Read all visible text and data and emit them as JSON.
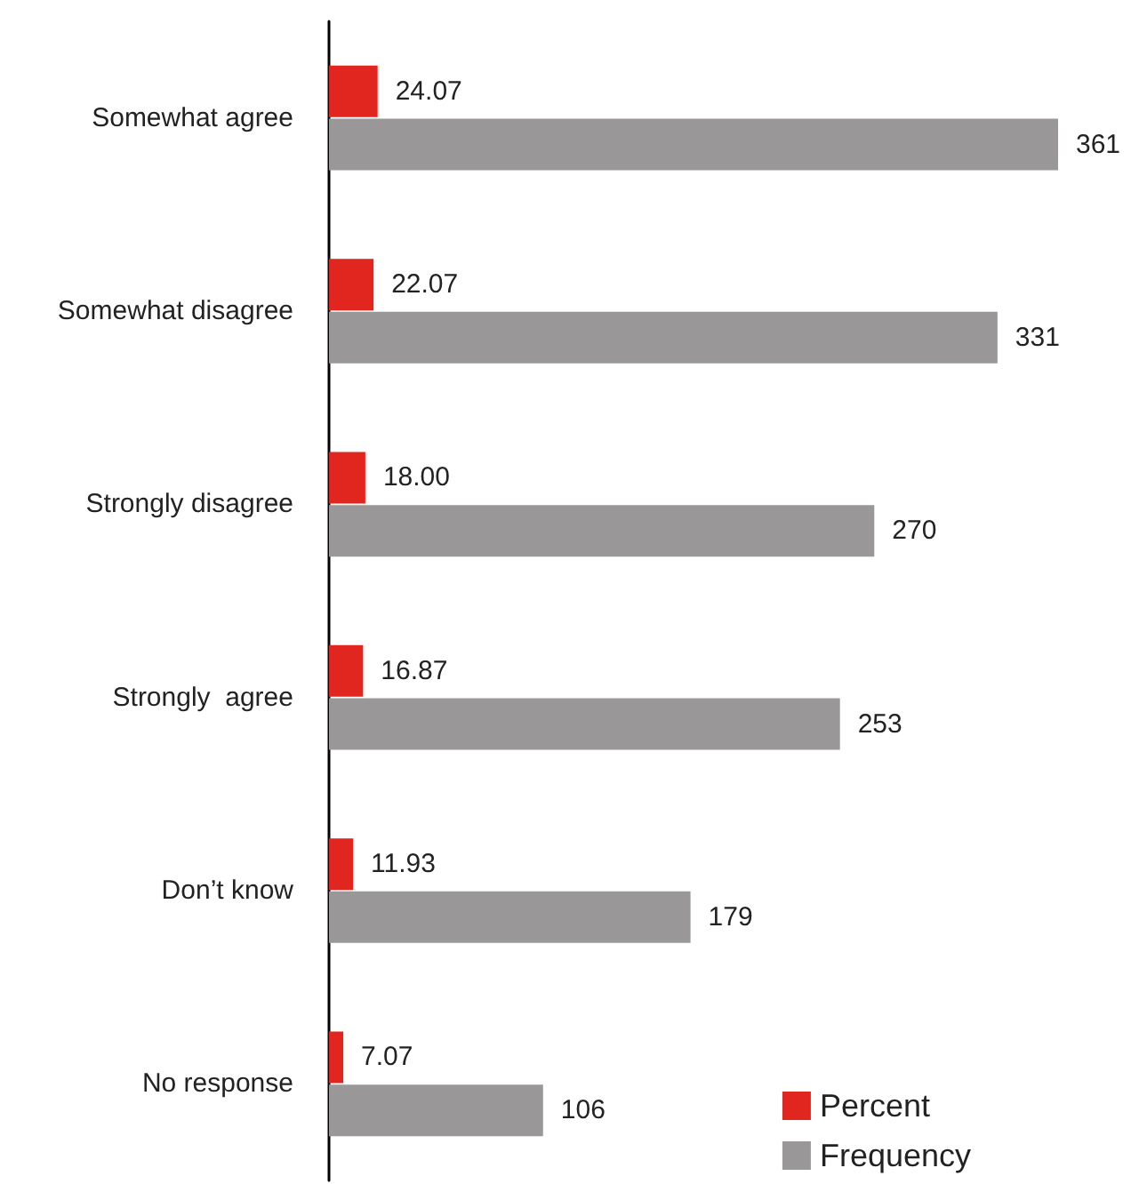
{
  "chart_data": {
    "type": "bar",
    "orientation": "horizontal",
    "categories": [
      "Somewhat agree",
      "Somewhat disagree",
      "Strongly disagree",
      "Strongly  agree",
      "Don’t know",
      "No response"
    ],
    "series": [
      {
        "name": "Percent",
        "color": "#e0261f",
        "values": [
          24.07,
          22.07,
          18.0,
          16.87,
          11.93,
          7.07
        ],
        "value_labels": [
          "24.07",
          "22.07",
          "18.00",
          "16.87",
          "11.93",
          "7.07"
        ]
      },
      {
        "name": "Frequency",
        "color": "#999797",
        "values": [
          361,
          331,
          270,
          253,
          179,
          106
        ],
        "value_labels": [
          "361",
          "331",
          "270",
          "253",
          "179",
          "106"
        ]
      }
    ],
    "legend": "bottom right"
  }
}
